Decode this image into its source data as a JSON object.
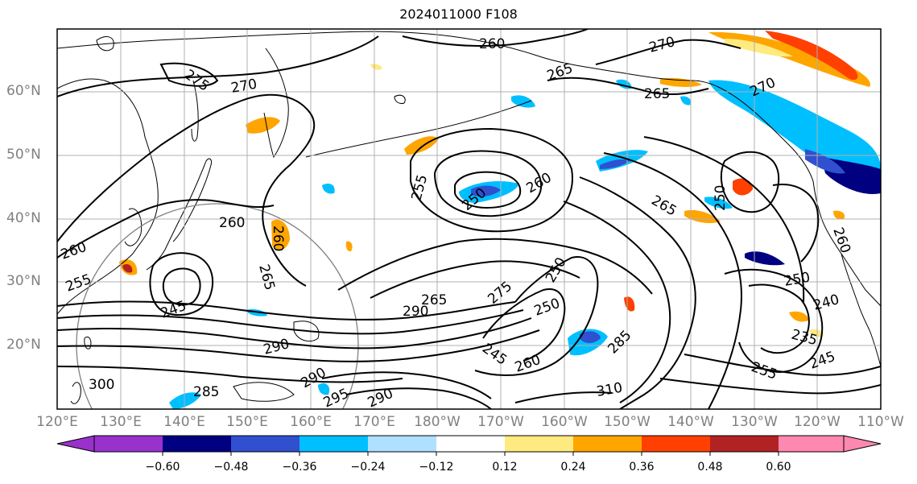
{
  "title": "2024011000 F108",
  "lat_labels": [
    "60°N",
    "50°N",
    "40°N",
    "30°N",
    "20°N"
  ],
  "lon_labels": [
    "120°E",
    "130°E",
    "140°E",
    "150°E",
    "160°E",
    "170°E",
    "180°W",
    "170°W",
    "160°W",
    "150°W",
    "140°W",
    "130°W",
    "120°W",
    "110°W"
  ],
  "contour_labels": [
    "260",
    "270",
    "275",
    "270",
    "265",
    "265",
    "255",
    "250",
    "260",
    "260",
    "265",
    "255",
    "270",
    "260",
    "265",
    "245",
    "250",
    "265",
    "290",
    "275",
    "260",
    "250",
    "245",
    "260",
    "290",
    "310",
    "285",
    "250",
    "240",
    "235",
    "255",
    "245",
    "300",
    "285",
    "290",
    "295",
    "290",
    "250",
    "260"
  ],
  "colorbar": {
    "tick_labels": [
      "−0.60",
      "−0.48",
      "−0.36",
      "−0.24",
      "−0.12",
      "0.12",
      "0.24",
      "0.36",
      "0.48",
      "0.60"
    ],
    "colors": [
      "#9932cc",
      "#000080",
      "#3050d0",
      "#00bfff",
      "#b0e0ff",
      "#ffffff",
      "#ffea80",
      "#ffa500",
      "#ff4000",
      "#b22222",
      "#ff88b0"
    ]
  },
  "colors": {
    "tick_text": "#808080",
    "gridline": "#b0b0b0",
    "contour": "#000000"
  }
}
